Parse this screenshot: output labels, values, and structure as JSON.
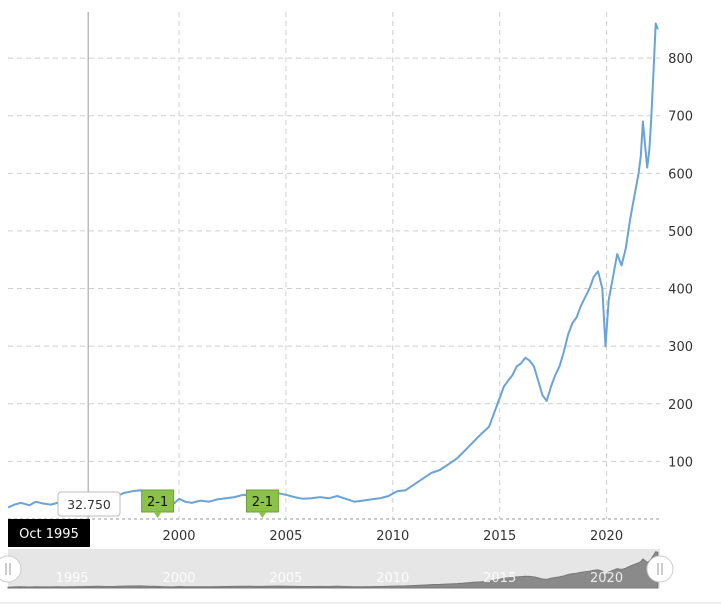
{
  "chart_data": {
    "type": "line",
    "title": "",
    "xlabel": "",
    "ylabel": "",
    "xlim": [
      1992,
      2022.5
    ],
    "ylim": [
      0,
      880
    ],
    "grid": true,
    "y_ticks": [
      100,
      200,
      300,
      400,
      500,
      600,
      700,
      800
    ],
    "x_ticks": [
      2000,
      2005,
      2010,
      2015,
      2020
    ],
    "series": [
      {
        "color": "#6aa3d8",
        "x": [
          1992.0,
          1992.3,
          1992.6,
          1993.0,
          1993.3,
          1993.6,
          1994.0,
          1994.3,
          1994.6,
          1995.0,
          1995.4,
          1995.8,
          1996.2,
          1996.6,
          1997.0,
          1997.4,
          1997.8,
          1998.2,
          1998.6,
          1999.0,
          1999.3,
          1999.6,
          1999.8,
          2000.0,
          2000.3,
          2000.6,
          2001.0,
          2001.4,
          2001.8,
          2002.2,
          2002.6,
          2003.0,
          2003.4,
          2003.8,
          2004.2,
          2004.6,
          2005.0,
          2005.4,
          2005.8,
          2006.2,
          2006.6,
          2007.0,
          2007.4,
          2007.8,
          2008.2,
          2008.6,
          2009.0,
          2009.4,
          2009.8,
          2010.2,
          2010.6,
          2011.0,
          2011.4,
          2011.8,
          2012.2,
          2012.6,
          2013.0,
          2013.4,
          2013.8,
          2014.2,
          2014.5,
          2014.8,
          2015.0,
          2015.2,
          2015.4,
          2015.6,
          2015.8,
          2016.0,
          2016.2,
          2016.4,
          2016.6,
          2016.8,
          2017.0,
          2017.2,
          2017.4,
          2017.6,
          2017.8,
          2018.0,
          2018.2,
          2018.4,
          2018.6,
          2018.8,
          2019.0,
          2019.2,
          2019.4,
          2019.6,
          2019.8,
          2019.95,
          2020.1,
          2020.3,
          2020.5,
          2020.7,
          2020.9,
          2021.1,
          2021.3,
          2021.5,
          2021.6,
          2021.7,
          2021.8,
          2021.9,
          2022.0,
          2022.1,
          2022.2,
          2022.3,
          2022.4
        ],
        "y": [
          20,
          25,
          28,
          24,
          30,
          27,
          25,
          28,
          26,
          30,
          32.75,
          35,
          40,
          36,
          38,
          45,
          48,
          50,
          42,
          38,
          30,
          25,
          28,
          35,
          30,
          28,
          32,
          30,
          34,
          36,
          38,
          42,
          40,
          38,
          40,
          45,
          42,
          38,
          35,
          36,
          38,
          36,
          40,
          35,
          30,
          32,
          34,
          36,
          40,
          48,
          50,
          60,
          70,
          80,
          85,
          95,
          105,
          120,
          135,
          150,
          160,
          190,
          210,
          230,
          240,
          250,
          265,
          270,
          280,
          275,
          265,
          240,
          215,
          205,
          230,
          250,
          265,
          290,
          320,
          340,
          350,
          370,
          385,
          400,
          420,
          430,
          400,
          300,
          380,
          420,
          460,
          440,
          470,
          520,
          560,
          600,
          630,
          690,
          650,
          610,
          640,
          700,
          780,
          860,
          850
        ]
      }
    ],
    "events": [
      {
        "label": "2-1",
        "x": 1999.0
      },
      {
        "label": "2-1",
        "x": 2003.9
      }
    ],
    "crosshair": {
      "label": "Oct 1995",
      "value": "32.750",
      "x": 1995.75,
      "y": 32.75
    },
    "navigator": {
      "ticks": [
        "1995",
        "2000",
        "2005",
        "2010",
        "2015",
        "2020"
      ]
    }
  }
}
